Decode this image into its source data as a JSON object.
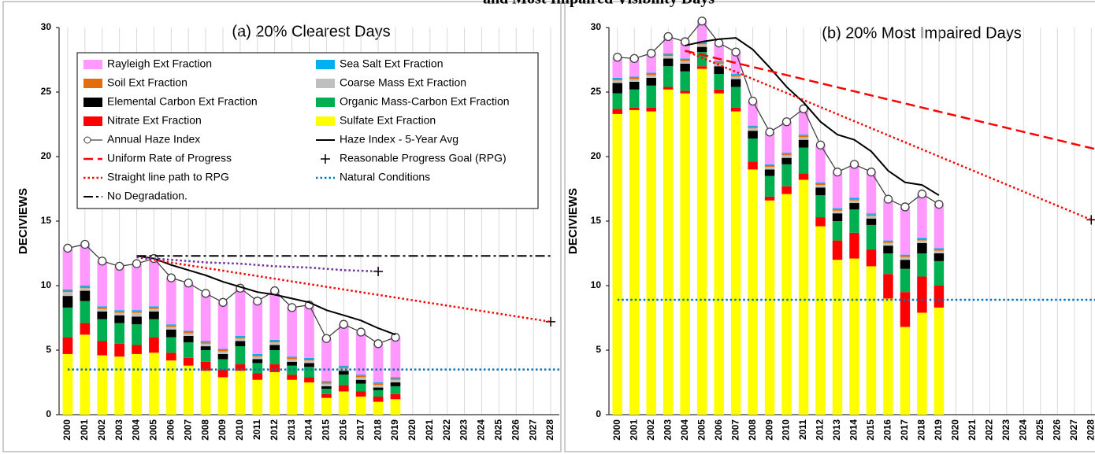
{
  "title": "and Most Impaired Visibility Days",
  "chart_data": [
    {
      "type": "bar",
      "stacked": true,
      "title": "(a) 20% Clearest Days",
      "ylabel": "DECIVIEWS",
      "categories": [
        "2000",
        "2001",
        "2002",
        "2003",
        "2004",
        "2005",
        "2006",
        "2007",
        "2008",
        "2009",
        "2010",
        "2011",
        "2012",
        "2013",
        "2014",
        "2015",
        "2016",
        "2017",
        "2018",
        "2019",
        "2020",
        "2021",
        "2022",
        "2023",
        "2024",
        "2025",
        "2026",
        "2027",
        "2028"
      ],
      "xlim": [
        1999.5,
        2028.5
      ],
      "ylim": [
        0,
        30
      ],
      "yticks": [
        0,
        5,
        10,
        15,
        20,
        25,
        30
      ],
      "grid": "x",
      "legend": "upper left",
      "series": [
        {
          "name": "Rayleigh Ext Fraction",
          "type": "bar",
          "color": "#ff99ff",
          "values": [
            3.2,
            3.2,
            3.5,
            3.4,
            3.6,
            3.7,
            3.6,
            3.7,
            3.7,
            3.6,
            3.7,
            4.1,
            3.8,
            3.8,
            4.1,
            3.3,
            3.2,
            3.3,
            3.0,
            3.1,
            null,
            null,
            null,
            null,
            null,
            null,
            null,
            null,
            null
          ]
        },
        {
          "name": "Sea Salt Ext Fraction",
          "type": "bar",
          "color": "#00b0f0",
          "values": [
            0.1,
            0.1,
            0.1,
            0.1,
            0.1,
            0.1,
            0.1,
            0.1,
            0.1,
            0.1,
            0.1,
            0.1,
            0.1,
            0.1,
            0.1,
            0.1,
            0.1,
            0.1,
            0.1,
            0.1,
            null,
            null,
            null,
            null,
            null,
            null,
            null,
            null,
            null
          ]
        },
        {
          "name": "Soil Ext Fraction",
          "type": "bar",
          "color": "#e46c0a",
          "values": [
            0.1,
            0.1,
            0.1,
            0.1,
            0.1,
            0.1,
            0.1,
            0.1,
            0.1,
            0.1,
            0.1,
            0.1,
            0.1,
            0.1,
            0.1,
            0.1,
            0.1,
            0.1,
            0.1,
            0.1,
            null,
            null,
            null,
            null,
            null,
            null,
            null,
            null,
            null
          ]
        },
        {
          "name": "Coarse Mass Ext Fraction",
          "type": "bar",
          "color": "#bfbfbf",
          "values": [
            0.3,
            0.2,
            0.2,
            0.2,
            0.3,
            0.2,
            0.2,
            0.2,
            0.2,
            0.2,
            0.2,
            0.2,
            0.2,
            0.2,
            0.2,
            0.2,
            0.2,
            0.2,
            0.2,
            0.2,
            null,
            null,
            null,
            null,
            null,
            null,
            null,
            null,
            null
          ]
        },
        {
          "name": "Elemental Carbon Ext Fraction",
          "type": "bar",
          "color": "#000000",
          "values": [
            0.9,
            0.8,
            0.6,
            0.6,
            0.6,
            0.6,
            0.6,
            0.5,
            0.3,
            0.4,
            0.4,
            0.3,
            0.4,
            0.3,
            0.3,
            0.2,
            0.3,
            0.3,
            0.2,
            0.3,
            null,
            null,
            null,
            null,
            null,
            null,
            null,
            null,
            null
          ]
        },
        {
          "name": "Organic Mass-Carbon Ext Fraction",
          "type": "bar",
          "color": "#00b050",
          "values": [
            2.3,
            1.7,
            1.7,
            1.6,
            1.6,
            1.4,
            1.2,
            1.2,
            0.9,
            0.8,
            1.4,
            0.8,
            1.1,
            0.7,
            0.8,
            0.4,
            0.8,
            0.6,
            0.5,
            0.6,
            null,
            null,
            null,
            null,
            null,
            null,
            null,
            null,
            null
          ]
        },
        {
          "name": "Nitrate Ext Fraction",
          "type": "bar",
          "color": "#ff0000",
          "values": [
            1.3,
            0.9,
            1.1,
            1.0,
            0.7,
            1.2,
            0.6,
            0.6,
            0.7,
            0.6,
            0.5,
            0.5,
            0.6,
            0.4,
            0.4,
            0.3,
            0.5,
            0.4,
            0.4,
            0.4,
            null,
            null,
            null,
            null,
            null,
            null,
            null,
            null,
            null
          ]
        },
        {
          "name": "Sulfate Ext Fraction",
          "type": "bar",
          "color": "#ffff00",
          "values": [
            4.7,
            6.2,
            4.6,
            4.5,
            4.7,
            4.8,
            4.2,
            3.8,
            3.4,
            2.9,
            3.4,
            2.7,
            3.3,
            2.7,
            2.5,
            1.3,
            1.8,
            1.4,
            1.0,
            1.2,
            null,
            null,
            null,
            null,
            null,
            null,
            null,
            null,
            null
          ]
        },
        {
          "name": "Annual Haze Index",
          "type": "line",
          "marker": "o",
          "color": "#404040",
          "values": [
            12.9,
            13.2,
            11.9,
            11.5,
            11.7,
            12.1,
            10.6,
            10.2,
            9.4,
            8.7,
            9.8,
            8.8,
            9.6,
            8.3,
            8.5,
            5.9,
            7.0,
            6.4,
            5.5,
            6.0,
            null,
            null,
            null,
            null,
            null,
            null,
            null,
            null,
            null
          ]
        },
        {
          "name": "Haze Index - 5-Year Avg",
          "type": "line",
          "color": "#000000",
          "dash": "solid",
          "width": 2,
          "x": [
            2004,
            2005,
            2006,
            2007,
            2008,
            2009,
            2010,
            2011,
            2012,
            2013,
            2014,
            2015,
            2016,
            2017,
            2018,
            2019
          ],
          "values": [
            12.3,
            12.1,
            11.6,
            11.2,
            10.8,
            10.3,
            9.9,
            9.5,
            9.3,
            9.0,
            8.7,
            8.1,
            7.7,
            7.3,
            6.7,
            6.2
          ]
        },
        {
          "name": "Uniform Rate of Progress",
          "type": "line",
          "color": "#ff0000",
          "dash": "dashed",
          "width": 2.5,
          "x": [],
          "values": []
        },
        {
          "name": "Reasonable Progress Goal (RPG)",
          "type": "scatter",
          "marker": "+",
          "color": "#000000",
          "x": [
            2018,
            2028
          ],
          "values": [
            11.1,
            7.2
          ]
        },
        {
          "name": "Straight line path to RPG",
          "type": "line",
          "color": "#ff0000",
          "dash": "dotted",
          "width": 2.5,
          "x": [
            2004,
            2028
          ],
          "values": [
            12.2,
            7.2
          ]
        },
        {
          "name": "Natural Conditions",
          "type": "line",
          "color": "#0070c0",
          "dash": "dotted",
          "width": 2.5,
          "x": [
            2000,
            2028.5
          ],
          "values": [
            3.5,
            3.5
          ]
        },
        {
          "name": "No Degradation.",
          "type": "line",
          "color": "#000000",
          "dash": "dashdot",
          "width": 2,
          "x": [
            2004,
            2028
          ],
          "values": [
            12.3,
            12.3
          ]
        },
        {
          "type": "line",
          "color": "#7030a0",
          "dash": "dotted",
          "width": 2.5,
          "x": [
            2004,
            2006,
            2008,
            2010,
            2012,
            2014,
            2016,
            2018
          ],
          "values": [
            12.2,
            12.0,
            11.8,
            11.7,
            11.5,
            11.4,
            11.2,
            11.1
          ]
        }
      ]
    },
    {
      "type": "bar",
      "stacked": true,
      "title": "(b) 20% Most Impaired Days",
      "ylabel": "DECIVIEWS",
      "categories": [
        "2000",
        "2001",
        "2002",
        "2003",
        "2004",
        "2005",
        "2006",
        "2007",
        "2008",
        "2009",
        "2010",
        "2011",
        "2012",
        "2013",
        "2014",
        "2015",
        "2016",
        "2017",
        "2018",
        "2019",
        "2020",
        "2021",
        "2022",
        "2023",
        "2024",
        "2025",
        "2026",
        "2027",
        "2028"
      ],
      "xlim": [
        1999.5,
        2028.5
      ],
      "ylim": [
        0,
        30
      ],
      "yticks": [
        0,
        5,
        10,
        15,
        20,
        25,
        30
      ],
      "grid": "x",
      "series": [
        {
          "name": "Rayleigh Ext Fraction",
          "type": "bar",
          "color": "#ff99ff",
          "values": [
            1.6,
            1.4,
            1.5,
            1.3,
            1.3,
            1.6,
            1.4,
            1.7,
            1.9,
            2.5,
            2.4,
            2.0,
            2.9,
            2.8,
            2.6,
            3.2,
            3.2,
            3.7,
            3.4,
            3.4,
            null,
            null,
            null,
            null,
            null,
            null,
            null,
            null,
            null
          ]
        },
        {
          "name": "Sea Salt Ext Fraction",
          "type": "bar",
          "color": "#00b0f0",
          "values": [
            0.1,
            0.1,
            0.1,
            0.1,
            0.1,
            0.1,
            0.1,
            0.1,
            0.1,
            0.1,
            0.1,
            0.1,
            0.1,
            0.1,
            0.1,
            0.1,
            0.1,
            0.1,
            0.1,
            0.1,
            null,
            null,
            null,
            null,
            null,
            null,
            null,
            null,
            null
          ]
        },
        {
          "name": "Soil Ext Fraction",
          "type": "bar",
          "color": "#e46c0a",
          "values": [
            0.1,
            0.1,
            0.1,
            0.1,
            0.1,
            0.1,
            0.1,
            0.1,
            0.1,
            0.1,
            0.1,
            0.1,
            0.1,
            0.1,
            0.1,
            0.1,
            0.1,
            0.1,
            0.1,
            0.1,
            null,
            null,
            null,
            null,
            null,
            null,
            null,
            null,
            null
          ]
        },
        {
          "name": "Coarse Mass Ext Fraction",
          "type": "bar",
          "color": "#bfbfbf",
          "values": [
            0.2,
            0.2,
            0.2,
            0.2,
            0.2,
            0.2,
            0.2,
            0.2,
            0.2,
            0.2,
            0.2,
            0.2,
            0.2,
            0.2,
            0.2,
            0.2,
            0.2,
            0.2,
            0.2,
            0.2,
            null,
            null,
            null,
            null,
            null,
            null,
            null,
            null,
            null
          ]
        },
        {
          "name": "Elemental Carbon Ext Fraction",
          "type": "bar",
          "color": "#000000",
          "values": [
            0.8,
            0.6,
            0.6,
            0.6,
            0.6,
            0.4,
            0.6,
            0.6,
            0.6,
            0.5,
            0.5,
            0.6,
            0.6,
            0.6,
            0.5,
            0.5,
            0.6,
            0.7,
            0.8,
            0.6,
            null,
            null,
            null,
            null,
            null,
            null,
            null,
            null,
            null
          ]
        },
        {
          "name": "Organic Mass-Carbon Ext Fraction",
          "type": "bar",
          "color": "#00b050",
          "values": [
            1.2,
            1.4,
            1.7,
            1.6,
            1.5,
            1.1,
            1.2,
            1.6,
            1.8,
            1.6,
            1.7,
            2.0,
            1.7,
            1.5,
            1.8,
            1.9,
            1.6,
            1.8,
            1.8,
            1.9,
            null,
            null,
            null,
            null,
            null,
            null,
            null,
            null,
            null
          ]
        },
        {
          "name": "Nitrate Ext Fraction",
          "type": "bar",
          "color": "#ff0000",
          "values": [
            0.4,
            0.2,
            0.3,
            0.2,
            0.2,
            0.2,
            0.3,
            0.3,
            0.6,
            0.3,
            0.6,
            0.5,
            0.7,
            1.5,
            2.0,
            1.3,
            1.9,
            2.7,
            2.8,
            1.7,
            null,
            null,
            null,
            null,
            null,
            null,
            null,
            null,
            null
          ]
        },
        {
          "name": "Sulfate Ext Fraction",
          "type": "bar",
          "color": "#ffff00",
          "values": [
            23.3,
            23.6,
            23.5,
            25.2,
            24.9,
            26.8,
            24.9,
            23.5,
            19.0,
            16.6,
            17.1,
            18.2,
            14.6,
            12.0,
            12.1,
            11.5,
            9.0,
            6.8,
            7.9,
            8.3,
            null,
            null,
            null,
            null,
            null,
            null,
            null,
            null,
            null
          ]
        },
        {
          "name": "Annual Haze Index",
          "type": "line",
          "marker": "o",
          "color": "#404040",
          "values": [
            27.7,
            27.6,
            28.0,
            29.3,
            28.9,
            30.5,
            28.8,
            28.1,
            24.3,
            21.9,
            22.7,
            23.7,
            20.9,
            18.8,
            19.4,
            18.8,
            16.7,
            16.1,
            17.1,
            16.3,
            null,
            null,
            null,
            null,
            null,
            null,
            null,
            null,
            null
          ]
        },
        {
          "name": "Haze Index - 5-Year Avg",
          "type": "line",
          "color": "#000000",
          "dash": "solid",
          "width": 2,
          "x": [
            2004,
            2005,
            2006,
            2007,
            2008,
            2009,
            2010,
            2011,
            2012,
            2013,
            2014,
            2015,
            2016,
            2017,
            2018,
            2019
          ],
          "values": [
            28.6,
            28.9,
            29.1,
            29.2,
            28.3,
            26.9,
            25.4,
            24.2,
            22.7,
            21.7,
            21.3,
            20.4,
            18.9,
            18.0,
            17.8,
            17.0
          ]
        },
        {
          "name": "Uniform Rate of Progress",
          "type": "line",
          "color": "#ff0000",
          "dash": "dashed",
          "width": 2.5,
          "x": [
            2004,
            2028.5
          ],
          "values": [
            28.2,
            20.5
          ]
        },
        {
          "name": "Reasonable Progress Goal (RPG)",
          "type": "scatter",
          "marker": "+",
          "color": "#000000",
          "x": [
            2028
          ],
          "values": [
            15.1
          ]
        },
        {
          "name": "Straight line path to RPG",
          "type": "line",
          "color": "#ff0000",
          "dash": "dotted",
          "width": 2.5,
          "x": [
            2004,
            2028
          ],
          "values": [
            28.2,
            15.1
          ]
        },
        {
          "name": "Natural Conditions",
          "type": "line",
          "color": "#0070c0",
          "dash": "dotted",
          "width": 2.5,
          "x": [
            2000,
            2028.5
          ],
          "values": [
            8.9,
            8.9
          ]
        }
      ]
    }
  ]
}
